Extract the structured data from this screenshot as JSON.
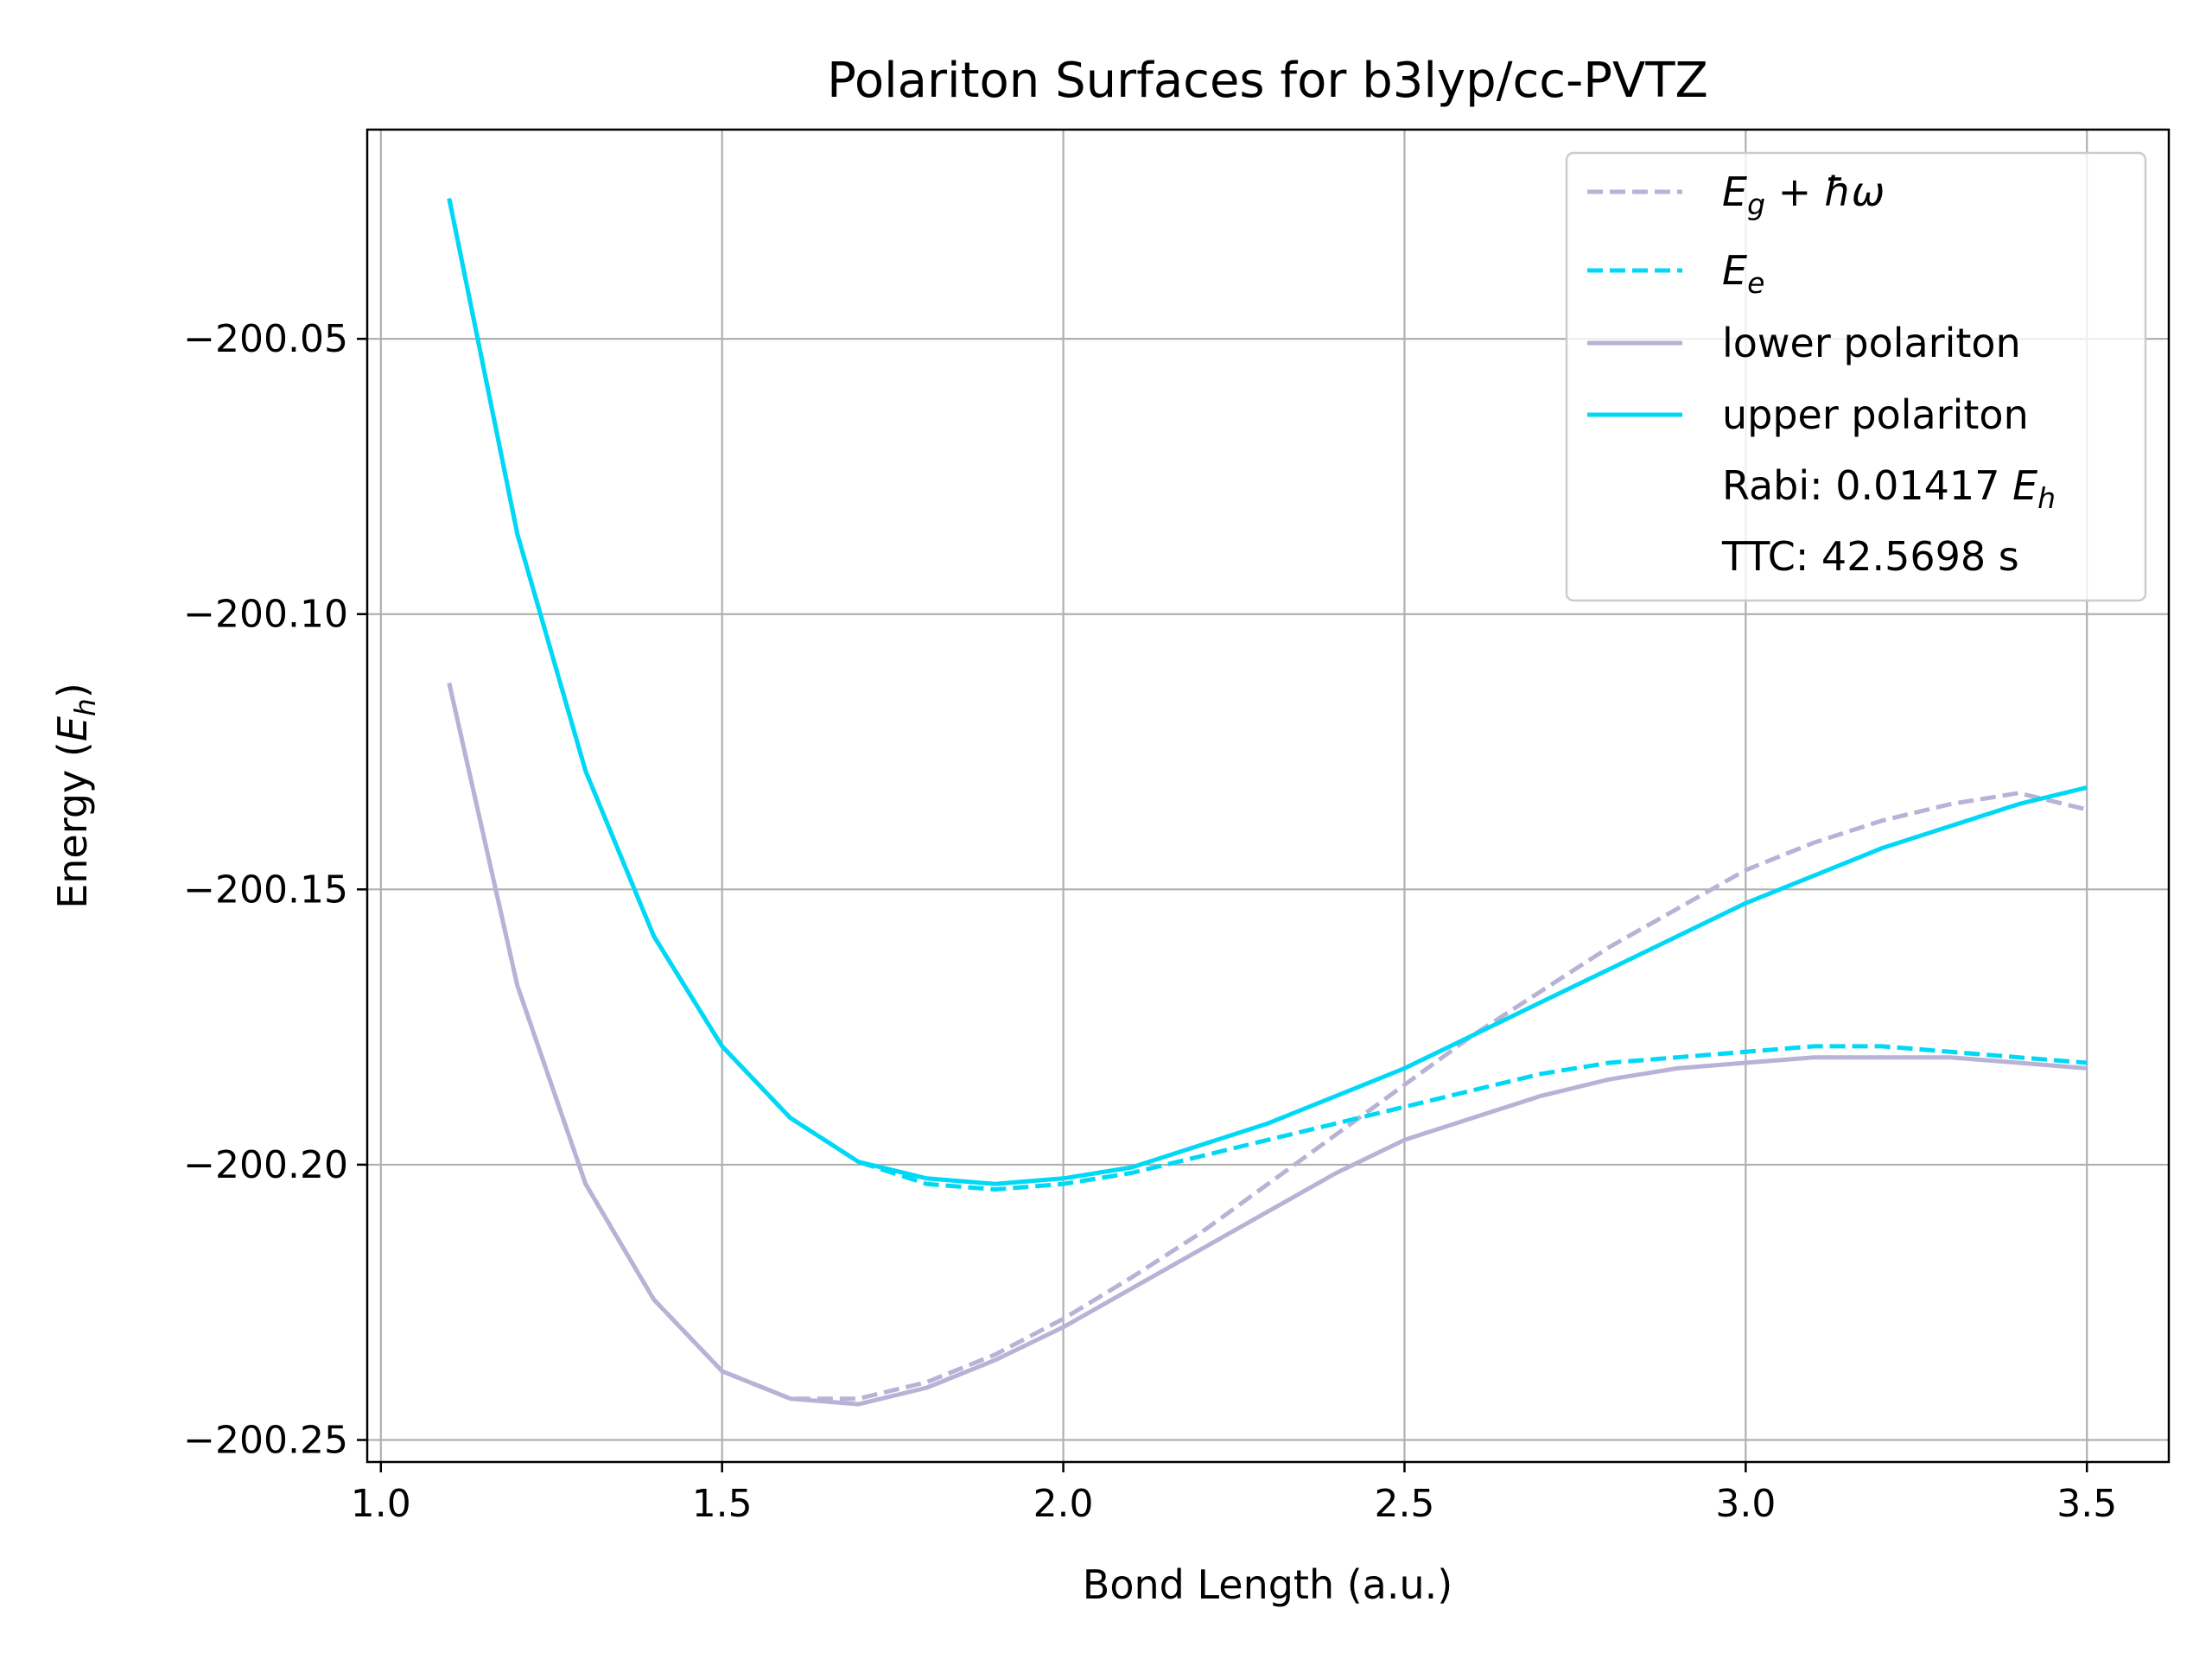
{
  "chart_data": {
    "type": "line",
    "title": "Polariton Surfaces for b3lyp/cc-PVTZ",
    "xlabel": "Bond Length (a.u.)",
    "ylabel": {
      "prefix": "Energy (",
      "symbol": "E",
      "subscript": "h",
      "suffix": ")"
    },
    "xlim": [
      0.98,
      3.62
    ],
    "ylim": [
      -200.254,
      -200.012
    ],
    "xticks": [
      1.0,
      1.5,
      2.0,
      2.5,
      3.0,
      3.5
    ],
    "xtick_labels": [
      "1.0",
      "1.5",
      "2.0",
      "2.5",
      "3.0",
      "3.5"
    ],
    "yticks": [
      -200.05,
      -200.1,
      -200.15,
      -200.2,
      -200.25
    ],
    "ytick_labels": [
      "−200.05",
      "−200.10",
      "−200.15",
      "−200.20",
      "−200.25"
    ],
    "grid": true,
    "legend_position": "top-right",
    "x": [
      1.1,
      1.2,
      1.3,
      1.4,
      1.5,
      1.6,
      1.7,
      1.8,
      1.9,
      2.0,
      2.1,
      2.2,
      2.3,
      2.4,
      2.5,
      2.6,
      2.7,
      2.8,
      2.9,
      3.0,
      3.1,
      3.2,
      3.3,
      3.4,
      3.5
    ],
    "series": [
      {
        "key": "eg",
        "name": {
          "symbol": "E",
          "subscript": "g",
          "suffix": " + ħω"
        },
        "color": "#b8b3d6",
        "dashed": true,
        "values": [
          -200.1125,
          -200.1675,
          -200.2035,
          -200.2245,
          -200.2375,
          -200.2425,
          -200.2425,
          -200.2395,
          -200.2345,
          -200.228,
          -200.2205,
          -200.2125,
          -200.2035,
          -200.1945,
          -200.1855,
          -200.1765,
          -200.1685,
          -200.1605,
          -200.1535,
          -200.1465,
          -200.1415,
          -200.1375,
          -200.1345,
          -200.1325,
          -200.1355
        ]
      },
      {
        "key": "ee",
        "name": {
          "symbol": "E",
          "subscript": "e",
          "suffix": ""
        },
        "color": "#00d8f6",
        "dashed": true,
        "values": [
          -200.0245,
          -200.0855,
          -200.1285,
          -200.1585,
          -200.1785,
          -200.1915,
          -200.1995,
          -200.2035,
          -200.2045,
          -200.2035,
          -200.2015,
          -200.1985,
          -200.1955,
          -200.1925,
          -200.1895,
          -200.1865,
          -200.1835,
          -200.1815,
          -200.1805,
          -200.1795,
          -200.1785,
          -200.1785,
          -200.1795,
          -200.1805,
          -200.1815
        ]
      },
      {
        "key": "lp",
        "name": "lower polariton",
        "color": "#b8b3d6",
        "dashed": false,
        "values": [
          -200.1125,
          -200.1675,
          -200.2035,
          -200.2245,
          -200.2375,
          -200.2425,
          -200.2435,
          -200.2405,
          -200.2355,
          -200.2295,
          -200.2225,
          -200.2155,
          -200.2085,
          -200.2015,
          -200.1955,
          -200.1915,
          -200.1875,
          -200.1845,
          -200.1825,
          -200.1815,
          -200.1805,
          -200.1805,
          -200.1805,
          -200.1815,
          -200.1825
        ]
      },
      {
        "key": "up",
        "name": "upper polariton",
        "color": "#00d8f6",
        "dashed": false,
        "values": [
          -200.0245,
          -200.0855,
          -200.1285,
          -200.1585,
          -200.1785,
          -200.1915,
          -200.1995,
          -200.2025,
          -200.2035,
          -200.2025,
          -200.2005,
          -200.1965,
          -200.1925,
          -200.1875,
          -200.1825,
          -200.1765,
          -200.1705,
          -200.1645,
          -200.1585,
          -200.1525,
          -200.1475,
          -200.1425,
          -200.1385,
          -200.1345,
          -200.1315
        ]
      }
    ],
    "annotations": [
      {
        "prefix": "Rabi: 0.01417 ",
        "symbol": "E",
        "subscript": "h"
      },
      {
        "prefix": "TTC: 42.5698 s",
        "symbol": "",
        "subscript": ""
      }
    ]
  }
}
